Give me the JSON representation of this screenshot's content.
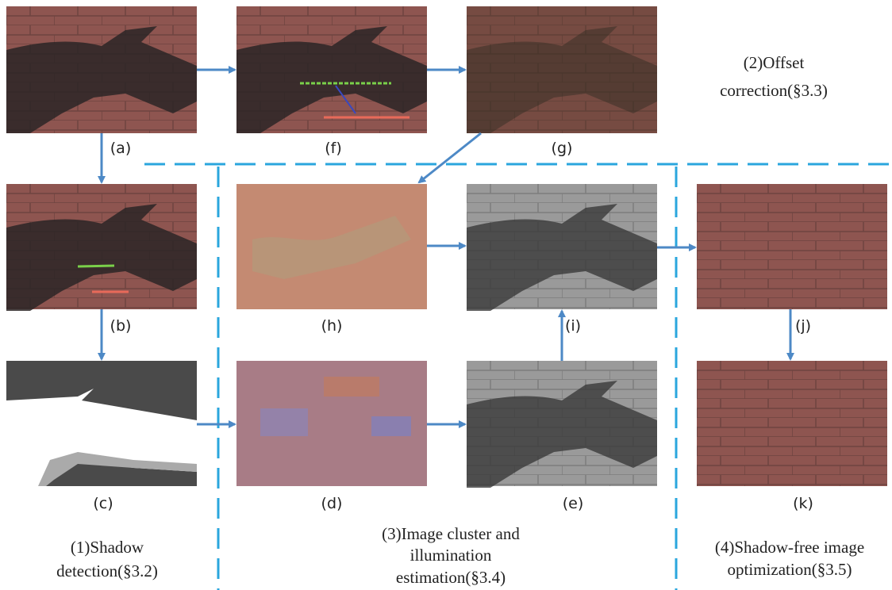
{
  "panels": {
    "a": "(a)",
    "b": "(b)",
    "c": "(c)",
    "d": "(d)",
    "e": "(e)",
    "f": "(f)",
    "g": "(g)",
    "h": "(h)",
    "i": "(i)",
    "j": "(j)",
    "k": "(k)"
  },
  "steps": [
    {
      "lines": [
        "(2)Offset",
        "correction(§3.3)"
      ]
    },
    {
      "lines": [
        "(1)Shadow",
        "detection(§3.2)"
      ]
    },
    {
      "lines": [
        "(3)Image cluster and",
        "illumination",
        "estimation(§3.4)"
      ]
    },
    {
      "lines": [
        "(4)Shadow-free image",
        "optimization(§3.5)"
      ]
    }
  ]
}
